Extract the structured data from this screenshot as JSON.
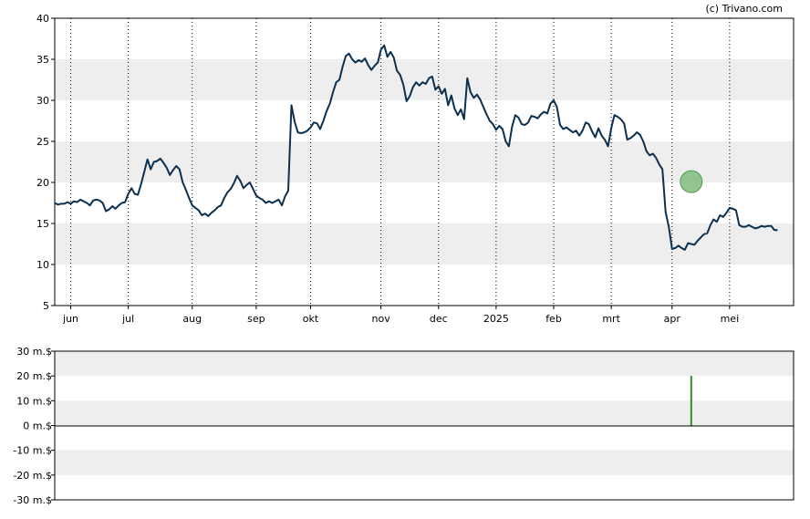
{
  "watermark": "(c) Trivano.com",
  "colors": {
    "price_line": "#0b3050",
    "band": "#eeeeee",
    "marker_fill": "#79b879",
    "marker_stroke": "#4f9a4f",
    "volume_bar": "#2e8b2e",
    "axis": "#000000",
    "grid": "#000000"
  },
  "chart_data": [
    {
      "type": "line",
      "title": "",
      "xlabel": "",
      "ylabel": "",
      "x_ticks": [
        "jun",
        "jul",
        "aug",
        "sep",
        "okt",
        "nov",
        "dec",
        "2025",
        "feb",
        "mrt",
        "apr",
        "mei"
      ],
      "x_range": [
        0,
        231
      ],
      "x_tick_positions": [
        5,
        23,
        43,
        63,
        80,
        102,
        120,
        138,
        156,
        174,
        193,
        211
      ],
      "ylim": [
        5,
        40
      ],
      "y_ticks": [
        5,
        10,
        15,
        20,
        25,
        30,
        35,
        40
      ],
      "grid": "vertical dotted at month ticks; alternating horizontal bands",
      "series": [
        {
          "values": [
            17.5,
            17.3,
            17.4,
            17.4,
            17.6,
            17.4,
            17.7,
            17.6,
            17.9,
            17.7,
            17.5,
            17.2,
            17.8,
            17.9,
            17.8,
            17.5,
            16.5,
            16.7,
            17.1,
            16.8,
            17.2,
            17.5,
            17.6,
            18.6,
            19.3,
            18.6,
            18.5,
            19.8,
            21.3,
            22.8,
            21.6,
            22.5,
            22.6,
            22.9,
            22.4,
            21.8,
            20.9,
            21.5,
            22.0,
            21.6,
            20.0,
            19.1,
            18.1,
            17.2,
            16.9,
            16.6,
            16.0,
            16.2,
            15.9,
            16.3,
            16.6,
            17.0,
            17.2,
            18.1,
            18.8,
            19.2,
            19.9,
            20.8,
            20.2,
            19.3,
            19.7,
            20.0,
            19.2,
            18.4,
            18.1,
            17.9,
            17.5,
            17.7,
            17.5,
            17.7,
            17.9,
            17.2,
            18.3,
            19.0,
            29.4,
            27.4,
            26.1,
            26.0,
            26.1,
            26.3,
            26.7,
            27.3,
            27.2,
            26.5,
            27.5,
            28.7,
            29.6,
            31.0,
            32.2,
            32.5,
            34.1,
            35.4,
            35.7,
            35.0,
            34.6,
            34.9,
            34.7,
            35.1,
            34.3,
            33.7,
            34.2,
            34.6,
            36.2,
            36.7,
            35.3,
            35.9,
            35.2,
            33.6,
            33.1,
            31.9,
            29.9,
            30.5,
            31.6,
            32.2,
            31.8,
            32.2,
            32.0,
            32.7,
            32.9,
            31.3,
            31.7,
            30.8,
            31.4,
            29.4,
            30.6,
            29.0,
            28.2,
            28.9,
            27.7,
            32.7,
            31.0,
            30.3,
            30.7,
            30.1,
            29.2,
            28.3,
            27.5,
            27.1,
            26.4,
            26.9,
            26.5,
            25.0,
            24.4,
            26.8,
            28.2,
            27.9,
            27.1,
            27.0,
            27.3,
            28.1,
            28.0,
            27.8,
            28.3,
            28.6,
            28.4,
            29.6,
            30.0,
            29.2,
            27.0,
            26.5,
            26.7,
            26.4,
            26.1,
            26.3,
            25.7,
            26.3,
            27.3,
            27.1,
            26.2,
            25.5,
            26.6,
            25.7,
            25.2,
            24.4,
            26.6,
            28.2,
            28.0,
            27.7,
            27.2,
            25.2,
            25.4,
            25.7,
            26.1,
            25.8,
            25.0,
            23.8,
            23.3,
            23.5,
            23.0,
            22.2,
            21.6,
            16.4,
            14.6,
            11.9,
            12.0,
            12.3,
            12.0,
            11.8,
            12.6,
            12.5,
            12.4,
            12.9,
            13.3,
            13.7,
            13.8,
            14.8,
            15.5,
            15.2,
            16.0,
            15.8,
            16.3,
            16.9,
            16.8,
            16.6,
            14.8,
            14.6,
            14.6,
            14.8,
            14.6,
            14.4,
            14.5,
            14.7,
            14.6,
            14.7,
            14.7,
            14.2,
            14.2
          ]
        }
      ],
      "markers": [
        {
          "x": 199,
          "y": 20.1
        }
      ]
    },
    {
      "type": "bar",
      "title": "",
      "xlabel": "",
      "ylabel": "",
      "x_range": [
        0,
        231
      ],
      "ylim": [
        -30,
        30
      ],
      "y_ticks": [
        30,
        20,
        10,
        0,
        -10,
        -20,
        -30
      ],
      "y_tick_labels": [
        "30 m.$",
        "20 m.$",
        "10 m.$",
        "0 m.$",
        "-10 m.$",
        "-20 m.$",
        "-30 m.$"
      ],
      "bars": [
        {
          "x": 199,
          "value": 20
        }
      ]
    }
  ]
}
